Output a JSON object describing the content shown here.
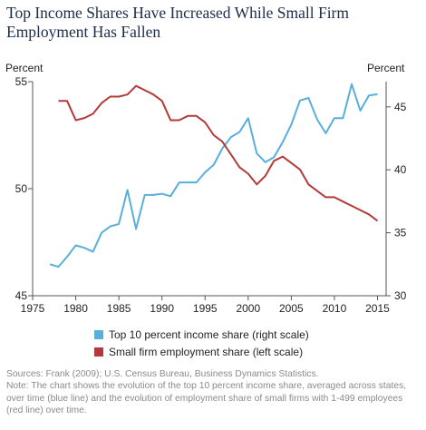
{
  "title": "Top Income Shares Have Increased While Small Firm Employment Has Fallen",
  "chart_data": {
    "type": "line",
    "left_axis": {
      "label": "Percent",
      "ylim": [
        45,
        55
      ],
      "ticks": [
        "45",
        "50",
        "55"
      ]
    },
    "right_axis": {
      "label": "Percent",
      "ylim": [
        30,
        47
      ],
      "ticks": [
        "30",
        "35",
        "40",
        "45"
      ]
    },
    "x_axis": {
      "xlim": [
        1975,
        2016
      ],
      "ticks": [
        "1975",
        "1980",
        "1985",
        "1990",
        "1995",
        "2000",
        "2005",
        "2010",
        "2015"
      ]
    },
    "grid": false,
    "legend_position": "bottom",
    "series": [
      {
        "name": "Top 10 percent income share (right scale)",
        "axis": "right",
        "color": "#5aaedc",
        "x": [
          1977,
          1978,
          1979,
          1980,
          1981,
          1982,
          1983,
          1984,
          1985,
          1986,
          1987,
          1988,
          1989,
          1990,
          1991,
          1992,
          1993,
          1994,
          1995,
          1996,
          1997,
          1998,
          1999,
          2000,
          2001,
          2002,
          2003,
          2004,
          2005,
          2006,
          2007,
          2008,
          2009,
          2010,
          2011,
          2012,
          2013,
          2014,
          2015
        ],
        "values": [
          32.5,
          32.3,
          33.1,
          34.0,
          33.8,
          33.5,
          35.0,
          35.5,
          35.7,
          38.4,
          35.3,
          38.0,
          38.0,
          38.1,
          37.9,
          39.0,
          39.0,
          39.0,
          39.8,
          40.4,
          41.7,
          42.6,
          43.0,
          44.1,
          41.3,
          40.6,
          41.0,
          42.2,
          43.6,
          45.5,
          45.7,
          44.0,
          42.9,
          44.1,
          44.1,
          46.8,
          44.7,
          45.9,
          46.0
        ]
      },
      {
        "name": "Small firm employment share (left scale)",
        "axis": "left",
        "color": "#b23a3a",
        "x": [
          1978,
          1979,
          1980,
          1981,
          1982,
          1983,
          1984,
          1985,
          1986,
          1987,
          1988,
          1989,
          1990,
          1991,
          1992,
          1993,
          1994,
          1995,
          1996,
          1997,
          1998,
          1999,
          2000,
          2001,
          2002,
          2003,
          2004,
          2005,
          2006,
          2007,
          2008,
          2009,
          2010,
          2011,
          2012,
          2013,
          2014,
          2015
        ],
        "values": [
          54.1,
          54.1,
          53.2,
          53.3,
          53.5,
          54.0,
          54.3,
          54.3,
          54.4,
          54.8,
          54.6,
          54.4,
          54.1,
          53.2,
          53.2,
          53.4,
          53.4,
          53.1,
          52.5,
          52.2,
          51.6,
          51.0,
          50.7,
          50.2,
          50.6,
          51.3,
          51.5,
          51.2,
          50.9,
          50.2,
          49.9,
          49.6,
          49.6,
          49.4,
          49.2,
          49.0,
          48.8,
          48.5
        ]
      }
    ]
  },
  "notes": {
    "sources": "Sources: Frank (2009); U.S. Census Bureau, Business Dynamics Statistics.",
    "note": "Note: The chart shows the evolution of the top 10 percent income share, averaged across states, over time (blue line) and the evolution of employment share of small firms with 1-499 employees (red line) over time."
  }
}
